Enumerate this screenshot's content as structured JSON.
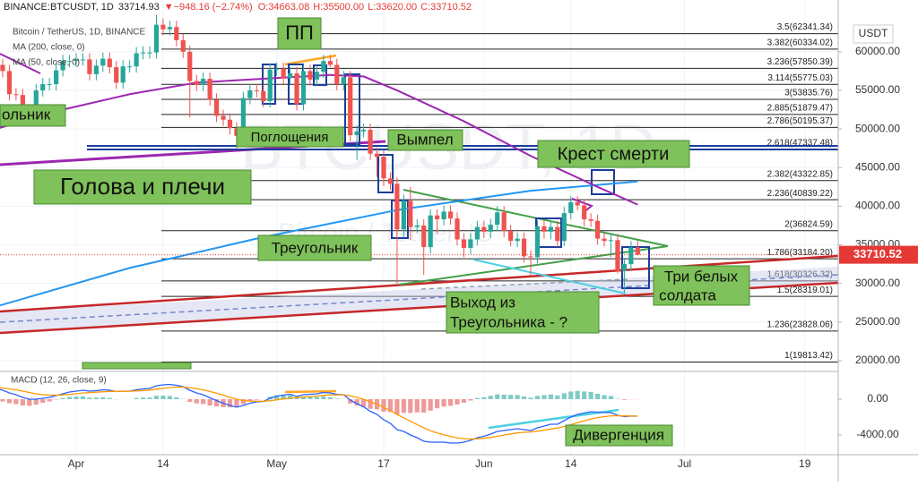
{
  "header": {
    "symbol": "BINANCE:BTCUSDT, 1D",
    "price": "33714.93",
    "change": "▼−948.16 (−2.74%)",
    "open": "O:34663.08",
    "high": "H:35500.00",
    "low": "L:33620.00",
    "close": "C:33710.52"
  },
  "chart_data": {
    "type": "candlestick",
    "legend": [
      "Bitcoin / TetherUS, 1D, BINANCE",
      "MA (200, close, 0)",
      "MA (50, close, 0)"
    ],
    "watermark": [
      "BTCUSDT, 1D",
      "Bitcoin / TetherUS"
    ],
    "y_unit": "USDT",
    "up_color": "#26a69a",
    "down_color": "#ef5350",
    "xlim": [
      0.6,
      126
    ],
    "xticks": [
      {
        "value": 12,
        "label": "Apr"
      },
      {
        "value": 25,
        "label": "14"
      },
      {
        "value": 42,
        "label": "May"
      },
      {
        "value": 58,
        "label": "17"
      },
      {
        "value": 73,
        "label": "Jun"
      },
      {
        "value": 86,
        "label": "14"
      },
      {
        "value": 103,
        "label": "Jul"
      },
      {
        "value": 121,
        "label": "19"
      }
    ],
    "ylim": [
      18600,
      66700
    ],
    "yticks": [
      {
        "value": 20000,
        "label": "20000.00"
      },
      {
        "value": 25000,
        "label": "25000.00"
      },
      {
        "value": 30000,
        "label": "30000.00"
      },
      {
        "value": 35000,
        "label": "35000.00"
      },
      {
        "value": 40000,
        "label": "40000.00"
      },
      {
        "value": 45000,
        "label": "45000.00"
      },
      {
        "value": 50000,
        "label": "50000.00"
      },
      {
        "value": 55000,
        "label": "55000.00"
      },
      {
        "value": 60000,
        "label": "60000.00"
      }
    ],
    "open": [
      58600,
      58300,
      57500,
      54500,
      54400,
      52300,
      51300,
      55000,
      55800,
      55800,
      57600,
      58800,
      58800,
      59000,
      59000,
      57100,
      58200,
      59100,
      58000,
      56000,
      58100,
      58100,
      59800,
      59900,
      59900,
      63500,
      62900,
      63200,
      61500,
      60000,
      56200,
      55700,
      56500,
      53800,
      51700,
      51200,
      50100,
      49100,
      54000,
      55000,
      54900,
      53600,
      57700,
      57800,
      56600,
      57200,
      53200,
      57500,
      56400,
      57400,
      58800,
      58300,
      55800,
      56700,
      49200,
      49700,
      49900,
      46800,
      46400,
      43600,
      42900,
      37000,
      40700,
      37300,
      37500,
      34700,
      38800,
      38300,
      39300,
      38400,
      35700,
      34600,
      35700,
      37300,
      36700,
      37600,
      39200,
      36800,
      35500,
      35800,
      33500,
      33400,
      37400,
      36700,
      37300,
      35500,
      39100,
      40500,
      40100,
      38300,
      38100,
      35800,
      35500,
      35600,
      31600,
      32500,
      34663.08
    ],
    "high": [
      59400,
      59100,
      58300,
      55300,
      55200,
      53100,
      55800,
      56600,
      56600,
      58400,
      59600,
      59600,
      59800,
      59800,
      59800,
      59000,
      59900,
      59900,
      58800,
      58900,
      58900,
      60600,
      60700,
      60700,
      64800,
      64300,
      64000,
      64000,
      62300,
      60800,
      57000,
      57300,
      57300,
      54600,
      52500,
      52000,
      50900,
      54800,
      55800,
      55800,
      55700,
      58500,
      58600,
      58600,
      58000,
      58000,
      58300,
      58300,
      58200,
      59600,
      59600,
      59100,
      57500,
      57500,
      50500,
      50700,
      50700,
      47600,
      47200,
      44400,
      43700,
      41500,
      42500,
      38300,
      38300,
      39600,
      39600,
      40100,
      40100,
      39200,
      36500,
      36500,
      38100,
      38100,
      38400,
      40000,
      40000,
      37600,
      36600,
      36600,
      34300,
      38200,
      38200,
      38100,
      38100,
      39900,
      41300,
      41300,
      40900,
      39100,
      38900,
      36600,
      36400,
      36400,
      33300,
      35500,
      35500
    ],
    "low": [
      57500,
      56700,
      53700,
      53700,
      51500,
      50500,
      50500,
      54200,
      55000,
      55000,
      56800,
      58000,
      58000,
      58200,
      56300,
      56300,
      57400,
      57200,
      55200,
      55200,
      57300,
      57300,
      59000,
      59100,
      59100,
      62100,
      62100,
      60700,
      59200,
      51500,
      54900,
      54900,
      53000,
      50900,
      50400,
      49300,
      47500,
      48300,
      53200,
      54100,
      52800,
      52800,
      56900,
      55800,
      55800,
      52400,
      52400,
      55600,
      55600,
      56600,
      58000,
      55000,
      55000,
      48400,
      46000,
      48900,
      46000,
      43800,
      42600,
      42100,
      30000,
      36000,
      35600,
      36500,
      31100,
      33900,
      36400,
      37500,
      37600,
      34900,
      33400,
      33800,
      34900,
      35900,
      35900,
      36800,
      36000,
      34800,
      34700,
      32700,
      31000,
      32600,
      35800,
      35700,
      34700,
      34800,
      38300,
      39500,
      37400,
      37300,
      35000,
      34800,
      33400,
      31300,
      28800,
      31700,
      33620
    ],
    "close": [
      58300,
      57500,
      54500,
      54400,
      52300,
      51300,
      55000,
      55800,
      55800,
      57600,
      58800,
      58800,
      59000,
      59000,
      57100,
      58200,
      59100,
      58000,
      56000,
      58100,
      58100,
      59800,
      59900,
      59900,
      63500,
      62900,
      63200,
      61500,
      60000,
      56200,
      55700,
      56500,
      53800,
      51700,
      51200,
      50100,
      49100,
      54000,
      55000,
      54900,
      53600,
      57700,
      57800,
      56600,
      57200,
      53200,
      57500,
      56400,
      57400,
      58800,
      58300,
      55800,
      56700,
      49200,
      49700,
      49900,
      46800,
      46400,
      43600,
      42900,
      37000,
      40700,
      37300,
      37500,
      34700,
      38800,
      38300,
      39300,
      38400,
      35700,
      34600,
      35700,
      37300,
      36700,
      37600,
      39200,
      36800,
      35500,
      35800,
      33500,
      33400,
      37400,
      36700,
      37300,
      35500,
      39100,
      40500,
      40100,
      38300,
      38100,
      35800,
      35500,
      35600,
      31600,
      32500,
      34660,
      33710.52
    ],
    "last_price_color": "#e53935",
    "ma": [
      {
        "name": "MA (200, close, 0)",
        "color": "#2196f3",
        "x": [
          0,
          20,
          40,
          60,
          80,
          96
        ],
        "values": [
          27000,
          32000,
          36000,
          39500,
          42000,
          43200
        ]
      },
      {
        "name": "MA (50, close, 0)",
        "color": "#9c27b0",
        "x": [
          0,
          10,
          20,
          30,
          40,
          50,
          55,
          60,
          70,
          80,
          90,
          96
        ],
        "values": [
          50000,
          52500,
          54500,
          56000,
          56500,
          57000,
          56800,
          55000,
          51000,
          46500,
          42500,
          40200
        ]
      }
    ],
    "fib": [
      {
        "value": 62341.34,
        "label": "3.5(62341.34)"
      },
      {
        "value": 60334.02,
        "label": "3.382(60334.02)"
      },
      {
        "value": 57850.39,
        "label": "3.236(57850.39)"
      },
      {
        "value": 55775.03,
        "label": "3.114(55775.03)"
      },
      {
        "value": 53835.76,
        "label": "3(53835.76)"
      },
      {
        "value": 51879.47,
        "label": "2.885(51879.47)"
      },
      {
        "value": 50195.37,
        "label": "2.786(50195.37)"
      },
      {
        "value": 47337.48,
        "label": "2.618(47337.48)"
      },
      {
        "value": 43322.85,
        "label": "2.382(43322.85)"
      },
      {
        "value": 40839.22,
        "label": "2.236(40839.22)"
      },
      {
        "value": 36824.59,
        "label": "2(36824.59)"
      },
      {
        "value": 33184.2,
        "label": "1.786(33184.20)"
      },
      {
        "value": 30326.32,
        "label": "1.618(30326.32)"
      },
      {
        "value": 28319.01,
        "label": "1.5(28319.01)"
      },
      {
        "value": 23828.06,
        "label": "1.236(23828.06)"
      },
      {
        "value": 19813.42,
        "label": "1(19813.42)"
      }
    ],
    "annotations": [
      "ПП",
      "Поглощения",
      "Вымпел",
      "Крест смерти",
      "Голова и плечи",
      "Треугольник",
      "Три белых",
      "солдата",
      "Выход из",
      "Треугольника - ?",
      "Дивергенция",
      "ольник"
    ],
    "macd": {
      "name": "MACD (12, 26, close, 9)",
      "ylim": [
        -6200,
        3100
      ],
      "yticks": [
        {
          "value": 0,
          "label": "0.00"
        },
        {
          "value": -4000,
          "label": "-4000.00"
        }
      ],
      "macd_color": "#2962ff",
      "signal_color": "#ff9800",
      "hist_up_color": "#80cbc4",
      "hist_down_color": "#ef9a9a",
      "macd": [
        1200,
        1000,
        700,
        500,
        200,
        0,
        0,
        100,
        200,
        400,
        600,
        800,
        900,
        1000,
        900,
        950,
        1050,
        1000,
        850,
        900,
        900,
        1050,
        1150,
        1200,
        1500,
        1600,
        1650,
        1550,
        1400,
        1000,
        700,
        500,
        150,
        -150,
        -450,
        -700,
        -900,
        -700,
        -450,
        -300,
        -250,
        100,
        350,
        450,
        550,
        300,
        500,
        550,
        600,
        750,
        700,
        550,
        500,
        -100,
        -500,
        -850,
        -1350,
        -1700,
        -2300,
        -2700,
        -3400,
        -3600,
        -4000,
        -4300,
        -4700,
        -4800,
        -4800,
        -4800,
        -4900,
        -4900,
        -4800,
        -4600,
        -4300,
        -4150,
        -3900,
        -3600,
        -3500,
        -3400,
        -3300,
        -3400,
        -3500,
        -3200,
        -3000,
        -2800,
        -2800,
        -2400,
        -2000,
        -1700,
        -1550,
        -1400,
        -1450,
        -1500,
        -1500,
        -1800,
        -1950,
        -1900,
        -1900
      ],
      "signal": [
        1300,
        1250,
        1150,
        1050,
        900,
        750,
        600,
        500,
        450,
        450,
        480,
        540,
        610,
        690,
        730,
        780,
        830,
        870,
        870,
        880,
        890,
        920,
        970,
        1020,
        1120,
        1210,
        1300,
        1350,
        1360,
        1290,
        1170,
        1040,
        860,
        660,
        440,
        210,
        -10,
        -150,
        -210,
        -230,
        -240,
        -170,
        -70,
        30,
        130,
        160,
        230,
        290,
        350,
        430,
        480,
        490,
        490,
        370,
        200,
        -10,
        -280,
        -560,
        -910,
        -1270,
        -1700,
        -2080,
        -2460,
        -2830,
        -3200,
        -3520,
        -3780,
        -3980,
        -4160,
        -4310,
        -4410,
        -4450,
        -4420,
        -4370,
        -4280,
        -4140,
        -4010,
        -3890,
        -3770,
        -3700,
        -3660,
        -3570,
        -3460,
        -3330,
        -3220,
        -3060,
        -2850,
        -2620,
        -2410,
        -2210,
        -2060,
        -1950,
        -1860,
        -1850,
        -1870,
        -1880,
        -1890
      ],
      "histogram": [
        -100,
        -250,
        -450,
        -550,
        -700,
        -750,
        -600,
        -400,
        -250,
        -50,
        120,
        260,
        290,
        310,
        170,
        170,
        220,
        130,
        -20,
        20,
        10,
        130,
        180,
        180,
        380,
        390,
        350,
        200,
        40,
        -290,
        -470,
        -540,
        -710,
        -810,
        -890,
        -910,
        -890,
        -550,
        -240,
        -70,
        -10,
        270,
        420,
        420,
        420,
        140,
        270,
        260,
        250,
        320,
        220,
        60,
        10,
        -470,
        -700,
        -840,
        -1070,
        -1140,
        -1390,
        -1430,
        -1700,
        -1520,
        -1540,
        -1470,
        -1500,
        -1280,
        -1020,
        -820,
        -740,
        -590,
        -390,
        -150,
        120,
        220,
        380,
        540,
        510,
        490,
        470,
        300,
        160,
        370,
        460,
        530,
        420,
        660,
        850,
        920,
        860,
        810,
        610,
        450,
        360,
        50,
        -80,
        -20,
        -10
      ]
    }
  }
}
